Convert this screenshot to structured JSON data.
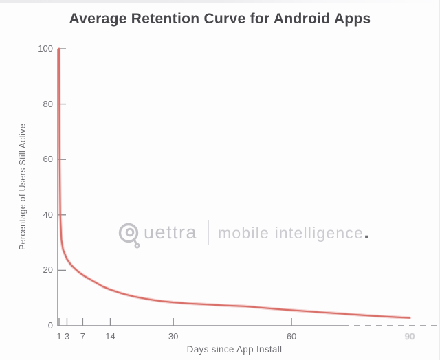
{
  "header": {
    "title": "Average Retention Curve for Android Apps"
  },
  "watermark": {
    "brand_text": "uettra",
    "tagline": "mobile intelligence",
    "tagline_dot": ".",
    "logo_color": "#c2c2c7",
    "tagline_color": "#cbcbd0"
  },
  "chart_data": {
    "type": "line",
    "title": "Average Retention Curve for Android Apps",
    "xlabel": "Days since App Install",
    "ylabel": "Percentage of Users Still Active",
    "xlim": [
      1,
      90
    ],
    "ylim": [
      0,
      100
    ],
    "grid": false,
    "legend": "none",
    "line_color": "#d9706a",
    "axis_color": "#8f8f93",
    "x_ticks": [
      {
        "value": 1,
        "label": "1"
      },
      {
        "value": 3,
        "label": "3"
      },
      {
        "value": 7,
        "label": "7"
      },
      {
        "value": 14,
        "label": "14"
      },
      {
        "value": 30,
        "label": "30"
      },
      {
        "value": 60,
        "label": "60"
      },
      {
        "value": 90,
        "label": "90",
        "faded": true
      }
    ],
    "y_ticks": [
      {
        "value": 0,
        "label": "0"
      },
      {
        "value": 20,
        "label": "20"
      },
      {
        "value": 40,
        "label": "40"
      },
      {
        "value": 60,
        "label": "60"
      },
      {
        "value": 80,
        "label": "80"
      },
      {
        "value": 100,
        "label": "100"
      }
    ],
    "series": [
      {
        "points": [
          [
            1,
            100
          ],
          [
            1.1,
            65
          ],
          [
            1.3,
            40
          ],
          [
            1.6,
            31
          ],
          [
            2,
            27.5
          ],
          [
            3,
            24
          ],
          [
            4,
            22
          ],
          [
            5,
            20.6
          ],
          [
            6,
            19.3
          ],
          [
            7,
            18.3
          ],
          [
            8,
            17.4
          ],
          [
            10,
            15.8
          ],
          [
            12,
            14.2
          ],
          [
            14,
            13
          ],
          [
            17,
            11.6
          ],
          [
            20,
            10.5
          ],
          [
            23,
            9.7
          ],
          [
            26,
            9
          ],
          [
            30,
            8.4
          ],
          [
            34,
            8
          ],
          [
            38,
            7.7
          ],
          [
            43,
            7.3
          ],
          [
            48,
            7
          ],
          [
            53,
            6.4
          ],
          [
            58,
            5.8
          ],
          [
            62,
            5.4
          ],
          [
            67,
            4.9
          ],
          [
            72,
            4.4
          ],
          [
            76,
            4
          ],
          [
            80,
            3.6
          ],
          [
            85,
            3.2
          ],
          [
            90,
            2.8
          ]
        ]
      }
    ]
  }
}
